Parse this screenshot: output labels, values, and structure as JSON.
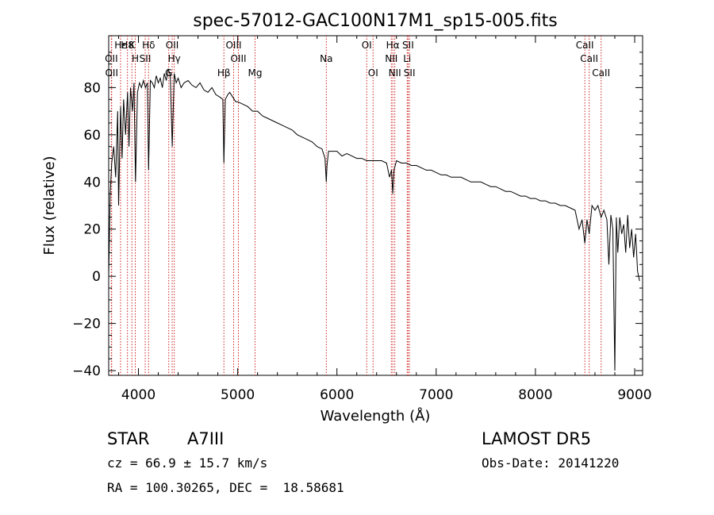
{
  "chart_data": {
    "type": "line",
    "title": "spec-57012-GAC100N17M1_sp15-005.fits",
    "xlabel": "Wavelength (Å)",
    "ylabel": "Flux (relative)",
    "xlim": [
      3700,
      9080
    ],
    "ylim": [
      -42,
      102
    ],
    "xticks": [
      4000,
      5000,
      6000,
      7000,
      8000,
      9000
    ],
    "xtick_labels": [
      "4000",
      "5000",
      "6000",
      "7000",
      "8000",
      "9000"
    ],
    "yticks": [
      -40,
      -20,
      0,
      20,
      40,
      60,
      80
    ],
    "ytick_labels": [
      "−40",
      "−20",
      "0",
      "20",
      "40",
      "60",
      "80"
    ],
    "grid": false,
    "line_color": "#000000",
    "marker_color": "#cc2222",
    "series": [
      {
        "x": [
          3700,
          3715,
          3730,
          3750,
          3770,
          3790,
          3800,
          3820,
          3835,
          3850,
          3870,
          3890,
          3905,
          3920,
          3940,
          3955,
          3970,
          3990,
          4010,
          4030,
          4050,
          4070,
          4090,
          4102,
          4120,
          4140,
          4160,
          4180,
          4200,
          4220,
          4240,
          4260,
          4280,
          4300,
          4320,
          4340,
          4360,
          4380,
          4400,
          4430,
          4460,
          4500,
          4540,
          4580,
          4620,
          4660,
          4700,
          4740,
          4780,
          4820,
          4850,
          4861,
          4875,
          4900,
          4920,
          4950,
          4980,
          5000,
          5050,
          5100,
          5150,
          5200,
          5250,
          5300,
          5350,
          5400,
          5450,
          5500,
          5550,
          5600,
          5650,
          5700,
          5750,
          5800,
          5850,
          5880,
          5893,
          5900,
          5915,
          5950,
          6000,
          6050,
          6100,
          6150,
          6200,
          6250,
          6300,
          6350,
          6400,
          6450,
          6500,
          6530,
          6550,
          6563,
          6575,
          6600,
          6650,
          6700,
          6750,
          6800,
          6850,
          6900,
          6950,
          7000,
          7050,
          7100,
          7150,
          7200,
          7250,
          7300,
          7350,
          7400,
          7450,
          7500,
          7550,
          7600,
          7650,
          7700,
          7750,
          7800,
          7850,
          7900,
          7950,
          8000,
          8050,
          8100,
          8150,
          8200,
          8250,
          8300,
          8350,
          8400,
          8440,
          8470,
          8498,
          8520,
          8542,
          8570,
          8600,
          8630,
          8662,
          8690,
          8720,
          8740,
          8760,
          8780,
          8800,
          8815,
          8830,
          8850,
          8870,
          8890,
          8910,
          8930,
          8950,
          8970,
          8990,
          9010,
          9030,
          9050
        ],
        "y": [
          0,
          35,
          48,
          55,
          42,
          70,
          30,
          72,
          50,
          75,
          60,
          78,
          55,
          80,
          70,
          82,
          40,
          78,
          82,
          80,
          83,
          80,
          82,
          45,
          83,
          82,
          80,
          85,
          82,
          84,
          80,
          86,
          83,
          88,
          85,
          55,
          86,
          82,
          84,
          80,
          82,
          83,
          81,
          80,
          82,
          79,
          78,
          80,
          77,
          76,
          75,
          48,
          75,
          77,
          78,
          76,
          74,
          74,
          73,
          72,
          70,
          70,
          68,
          67,
          66,
          65,
          64,
          63,
          62,
          60,
          59,
          58,
          57,
          55,
          54,
          50,
          40,
          47,
          53,
          53,
          53,
          51,
          52,
          51,
          50,
          50,
          49,
          49,
          49,
          49,
          48,
          42,
          45,
          35,
          45,
          49,
          48,
          48,
          47,
          47,
          46,
          45,
          45,
          44,
          43,
          43,
          42,
          42,
          42,
          41,
          40,
          40,
          40,
          39,
          38,
          38,
          37,
          36,
          36,
          35,
          34,
          34,
          33,
          33,
          32,
          32,
          31,
          31,
          30,
          30,
          29,
          28,
          20,
          24,
          14,
          24,
          18,
          30,
          28,
          30,
          25,
          28,
          24,
          5,
          26,
          20,
          -40,
          25,
          10,
          25,
          18,
          22,
          10,
          26,
          12,
          20,
          8,
          18,
          2,
          -2
        ]
      }
    ],
    "lines": [
      {
        "label": "Hε",
        "x": 3820,
        "row": 1
      },
      {
        "label": "OII",
        "x": 3727,
        "row": 2
      },
      {
        "label": "OII",
        "x": 3730,
        "row": 3
      },
      {
        "label": "H8",
        "x": 3889,
        "row": 1
      },
      {
        "label": "K",
        "x": 3934,
        "row": 1
      },
      {
        "label": "H",
        "x": 3968,
        "row": 2
      },
      {
        "label": "Hδ",
        "x": 4102,
        "row": 1
      },
      {
        "label": "SII",
        "x": 4068,
        "row": 2
      },
      {
        "label": "OII",
        "x": 4340,
        "row": 1
      },
      {
        "label": "Hγ",
        "x": 4361,
        "row": 2
      },
      {
        "label": "G",
        "x": 4305,
        "row": 3
      },
      {
        "label": "Hβ",
        "x": 4861,
        "row": 3
      },
      {
        "label": "OIII",
        "x": 4959,
        "row": 1
      },
      {
        "label": "OIII",
        "x": 5007,
        "row": 2
      },
      {
        "label": "Mg",
        "x": 5175,
        "row": 3
      },
      {
        "label": "Na",
        "x": 5893,
        "row": 2
      },
      {
        "label": "OI",
        "x": 6300,
        "row": 1
      },
      {
        "label": "OI",
        "x": 6364,
        "row": 3
      },
      {
        "label": "Hα",
        "x": 6563,
        "row": 1
      },
      {
        "label": "NII",
        "x": 6548,
        "row": 2
      },
      {
        "label": "NII",
        "x": 6583,
        "row": 3
      },
      {
        "label": "SII",
        "x": 6717,
        "row": 1
      },
      {
        "label": "Li",
        "x": 6708,
        "row": 2
      },
      {
        "label": "SII",
        "x": 6731,
        "row": 3
      },
      {
        "label": "CaII",
        "x": 8498,
        "row": 1
      },
      {
        "label": "CaII",
        "x": 8542,
        "row": 2
      },
      {
        "label": "CaII",
        "x": 8662,
        "row": 3
      }
    ]
  },
  "info": {
    "object_type": "STAR",
    "subclass": "A7III",
    "survey": "LAMOST DR5",
    "velocity": "cz = 66.9 ± 15.7 km/s",
    "obs_date": "Obs-Date: 20141220",
    "coords": "RA = 100.30265, DEC =  18.58681"
  }
}
